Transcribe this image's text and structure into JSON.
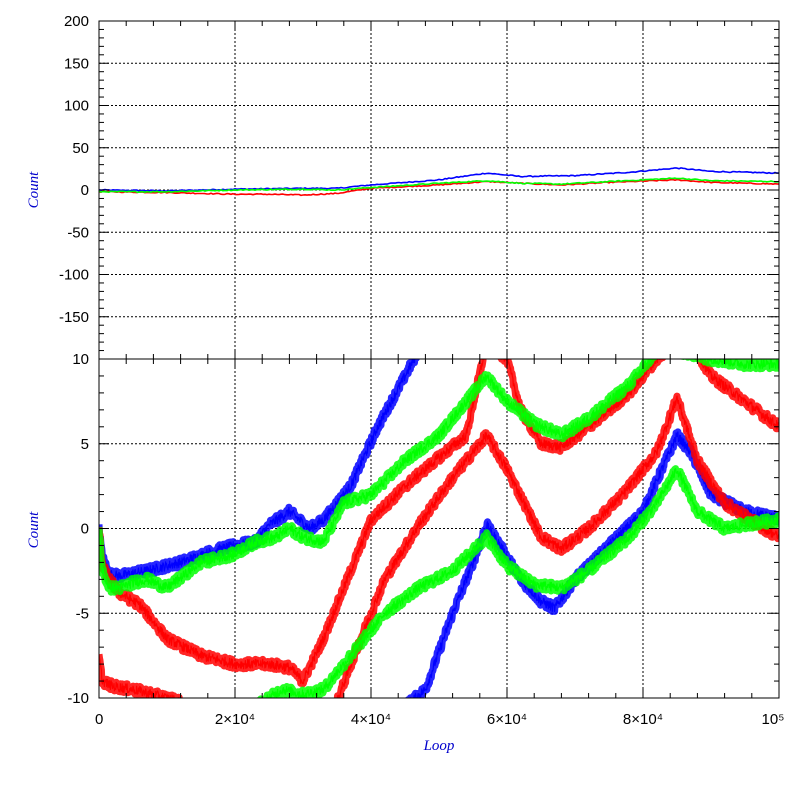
{
  "chart_data": [
    {
      "type": "line",
      "panel": "top",
      "xlabel": "",
      "ylabel": "Count",
      "xlim": [
        0,
        100000
      ],
      "ylim": [
        -200,
        200
      ],
      "y_ticks": [
        {
          "value": 200,
          "label": "200"
        },
        {
          "value": 150,
          "label": "150"
        },
        {
          "value": 100,
          "label": "100"
        },
        {
          "value": 50,
          "label": "50"
        },
        {
          "value": 0,
          "label": "0"
        },
        {
          "value": -50,
          "label": "-50"
        },
        {
          "value": -100,
          "label": "-100"
        },
        {
          "value": -150,
          "label": "-150"
        }
      ],
      "grid": true,
      "series": [
        {
          "color": "#0000ff",
          "x": [
            0,
            10000,
            20000,
            30000,
            35000,
            40000,
            50000,
            57000,
            62000,
            70000,
            78000,
            85000,
            90000,
            100000
          ],
          "y": [
            0,
            -1,
            1,
            2,
            2,
            6,
            12,
            20,
            16,
            17,
            21,
            26,
            22,
            20
          ]
        },
        {
          "color": "#ff0000",
          "x": [
            0,
            10000,
            20000,
            25000,
            30000,
            35000,
            40000,
            50000,
            57000,
            62000,
            68000,
            75000,
            85000,
            90000,
            100000
          ],
          "y": [
            -2,
            -3,
            -5,
            -5,
            -6,
            -4,
            2,
            6,
            10,
            8,
            6,
            9,
            12,
            9,
            7
          ]
        },
        {
          "color": "#00ff00",
          "x": [
            0,
            10000,
            20000,
            30000,
            35000,
            40000,
            50000,
            57000,
            62000,
            68000,
            75000,
            85000,
            90000,
            100000
          ],
          "y": [
            -2,
            -2,
            0,
            1,
            0,
            3,
            8,
            11,
            8,
            7,
            10,
            14,
            11,
            10
          ]
        }
      ]
    },
    {
      "type": "line",
      "panel": "bottom",
      "xlabel": "Loop",
      "ylabel": "Count",
      "xlim": [
        0,
        100000
      ],
      "ylim": [
        -10,
        10
      ],
      "x_ticks": [
        {
          "value": 0,
          "label": "0"
        },
        {
          "value": 20000,
          "label": "2×10⁴"
        },
        {
          "value": 40000,
          "label": "4×10⁴"
        },
        {
          "value": 60000,
          "label": "6×10⁴"
        },
        {
          "value": 80000,
          "label": "8×10⁴"
        },
        {
          "value": 100000,
          "label": "10⁵"
        }
      ],
      "y_ticks": [
        {
          "value": 10,
          "label": "10"
        },
        {
          "value": 5,
          "label": "5"
        },
        {
          "value": 0,
          "label": "0"
        },
        {
          "value": -5,
          "label": "-5"
        },
        {
          "value": -10,
          "label": "-10"
        }
      ],
      "grid": true,
      "series": [
        {
          "color": "#0000ff",
          "x": [
            0,
            500,
            1500,
            3000,
            7000,
            12000,
            17000,
            20000,
            23000,
            25000,
            28000,
            31000,
            33000,
            37000,
            41000,
            45000,
            47000
          ],
          "y": [
            0,
            -1.7,
            -2.7,
            -2.8,
            -2.5,
            -2.0,
            -1.3,
            -1.0,
            -0.8,
            0.2,
            1.0,
            0.0,
            0.5,
            2.5,
            6.0,
            9.0,
            10.5
          ]
        },
        {
          "color": "#0000ff",
          "x": [
            45000,
            48000,
            52000,
            55000,
            57000,
            59000,
            62000,
            65000,
            67000,
            70000,
            75000,
            80000,
            85000,
            87000,
            90000,
            95000,
            100000
          ],
          "y": [
            -10.5,
            -9.5,
            -5.0,
            -2.0,
            0.2,
            -1.0,
            -3.0,
            -4.3,
            -4.7,
            -3.0,
            -1.0,
            1.0,
            5.5,
            4.5,
            2.0,
            1.0,
            0.6
          ]
        },
        {
          "color": "#ff0000",
          "x": [
            0,
            500,
            1500,
            3000,
            6000,
            10000,
            15000,
            20000,
            25000,
            28000,
            30000,
            33000,
            36000,
            40000,
            45000,
            50000,
            54000,
            57000,
            60000,
            62000,
            65000,
            68000,
            72000,
            78000,
            82000,
            85000,
            87000,
            90000,
            95000,
            100000
          ],
          "y": [
            0,
            -2.2,
            -3.0,
            -3.8,
            -4.5,
            -6.5,
            -7.5,
            -8.0,
            -8.0,
            -8.2,
            -9.0,
            -6.5,
            -3.5,
            0.5,
            2.5,
            4.2,
            5.5,
            11.0,
            10.0,
            7.0,
            5.0,
            4.8,
            6.0,
            8.0,
            10.0,
            11.0,
            11.0,
            9.0,
            7.5,
            6.0
          ]
        },
        {
          "color": "#ff0000",
          "x": [
            0,
            500,
            2000,
            5000,
            8000,
            10000,
            12000
          ],
          "y": [
            -7.5,
            -9.0,
            -9.3,
            -9.5,
            -9.8,
            -10.0,
            -10.2
          ]
        },
        {
          "color": "#ff0000",
          "x": [
            35000,
            38000,
            42000,
            47000,
            52000,
            57000,
            60000,
            65000,
            68000,
            72000,
            77000,
            82000,
            85000,
            88000,
            92000,
            97000,
            100000
          ],
          "y": [
            -10.2,
            -7.0,
            -3.0,
            0.2,
            3.0,
            5.5,
            3.5,
            -0.5,
            -1.2,
            0.0,
            2.0,
            4.5,
            7.7,
            4.0,
            1.5,
            0.2,
            -0.5
          ]
        },
        {
          "color": "#00ff00",
          "x": [
            0,
            500,
            1500,
            3000,
            5000,
            7000,
            10000,
            15000,
            20000,
            23000,
            26000,
            28000,
            30000,
            33000,
            36000,
            40000,
            45000,
            50000,
            54000,
            57000,
            60000,
            64000,
            68000,
            72000,
            78000,
            82000,
            85000,
            90000,
            95000,
            100000
          ],
          "y": [
            0,
            -2.5,
            -3.5,
            -3.5,
            -3.2,
            -3.0,
            -3.5,
            -2.0,
            -1.5,
            -0.8,
            -0.5,
            0.0,
            -0.5,
            -0.8,
            1.5,
            2.0,
            4.0,
            5.5,
            7.5,
            9.0,
            7.5,
            6.2,
            5.5,
            6.5,
            8.5,
            10.5,
            10.5,
            10.0,
            9.7,
            9.7
          ]
        },
        {
          "color": "#00ff00",
          "x": [
            23000,
            27000,
            30000,
            33000,
            37000,
            42000,
            47000,
            52000,
            57000,
            60000,
            64000,
            68000,
            72000,
            78000,
            82000,
            85000,
            88000,
            92000,
            96000,
            100000
          ],
          "y": [
            -10.5,
            -9.5,
            -9.8,
            -9.5,
            -7.5,
            -5.0,
            -3.5,
            -2.5,
            -0.5,
            -2.2,
            -3.3,
            -3.5,
            -2.5,
            -0.5,
            1.5,
            3.5,
            1.0,
            0.0,
            0.3,
            0.5
          ]
        }
      ]
    }
  ]
}
